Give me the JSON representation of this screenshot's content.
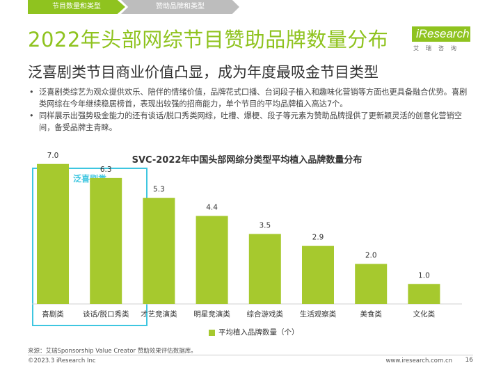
{
  "tabs": [
    "节目数量和类型",
    "赞助品牌和类型"
  ],
  "title": "2022年头部网综节目赞助品牌数量分布",
  "logo": {
    "text": "iResearch",
    "sub": "艾瑞咨询"
  },
  "subtitle": "泛喜剧类节目商业价值凸显，成为年度最吸金节目类型",
  "bullets": [
    "泛喜剧类综艺为观众提供欢乐、陪伴的情绪价值，品牌花式口播、台词段子植入和趣味化营销等方面也更具备融合优势。喜剧类网综在今年继续稳居榜首，表现出较强的招商能力，单个节目的平均品牌植入高达7个。",
    "同样展示出强势吸金能力的还有谈话/脱口秀类网综，吐槽、爆梗、段子等元素为赞助品牌提供了更新颖灵活的创意化营销空间，备受品牌主青睐。"
  ],
  "highlight_label": "泛喜剧类",
  "chart_data": {
    "type": "bar",
    "title": "SVC-2022年中国头部网综分类型平均植入品牌数量分布",
    "categories": [
      "喜剧类",
      "谈话/脱口秀类",
      "才艺竞演类",
      "明星竞演类",
      "综合游戏类",
      "生活观察类",
      "美食类",
      "文化类"
    ],
    "series": [
      {
        "name": "平均植入品牌数量（个）",
        "values": [
          7.0,
          6.3,
          5.3,
          4.4,
          3.5,
          2.9,
          2.0,
          1.0
        ],
        "color": "#a6c92e"
      }
    ],
    "value_labels": [
      "7.0",
      "6.3",
      "5.3",
      "4.4",
      "3.5",
      "2.9",
      "2.0",
      "1.0"
    ],
    "ylim": [
      0,
      8
    ],
    "grid": false,
    "legend": "bottom"
  },
  "source": "来源：艾瑞Sponsorship Value Creator 赞助效果评估数据库。",
  "footer": {
    "left": "©2023.3 iResearch Inc",
    "right": "www.iresearch.com.cn",
    "page": "16"
  },
  "colors": {
    "accent": "#8fc31f",
    "highlight": "#3ec6e0",
    "bar": "#a6c92e"
  }
}
